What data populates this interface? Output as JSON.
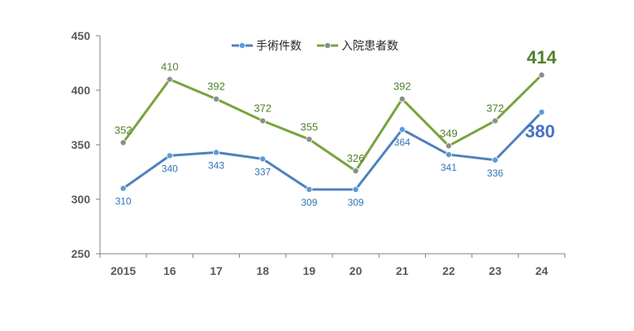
{
  "chart_data": {
    "type": "line",
    "categories": [
      "2015",
      "16",
      "17",
      "18",
      "19",
      "20",
      "21",
      "22",
      "23",
      "24"
    ],
    "ylim": [
      250,
      450
    ],
    "yticks": [
      250,
      300,
      350,
      400,
      450
    ],
    "grid": false,
    "legend_position": "top-center",
    "series": [
      {
        "name": "手術件数",
        "color": "#4f81bd",
        "label_color": "#2e75b6",
        "marker_color": "#5b9bd5",
        "values": [
          310,
          340,
          343,
          337,
          309,
          309,
          364,
          341,
          336,
          380
        ],
        "labels": [
          "310",
          "340",
          "343",
          "337",
          "309",
          "309",
          "364",
          "341",
          "336",
          "380"
        ]
      },
      {
        "name": "入院患者数",
        "color": "#77a33d",
        "label_color": "#4f7f2a",
        "marker_color": "#8c8c8c",
        "values": [
          352,
          410,
          392,
          372,
          355,
          326,
          392,
          349,
          372,
          414
        ],
        "labels": [
          "352",
          "410",
          "392",
          "372",
          "355",
          "326",
          "392",
          "349",
          "372",
          "414"
        ]
      }
    ]
  }
}
